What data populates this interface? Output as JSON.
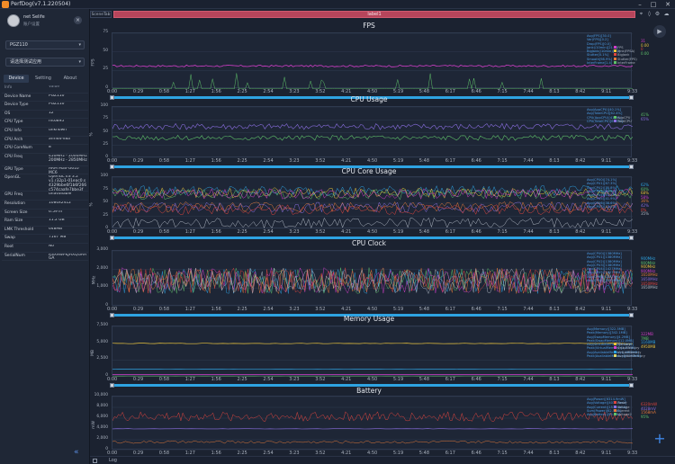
{
  "window": {
    "title": "PerfDog(v7.1.220504)",
    "min": "–",
    "max": "□",
    "close": "✕"
  },
  "user": {
    "name": "net Selife",
    "sub": "账户设置"
  },
  "device_select": "PGZ110",
  "app_select": "请选择测试应用",
  "tabs": [
    "Device",
    "Setting",
    "About"
  ],
  "info": {
    "header": {
      "k": "Info",
      "v": "Value"
    },
    "rows": [
      {
        "k": "Device Name",
        "v": "PGZ110"
      },
      {
        "k": "Device Type",
        "v": "PGZ110"
      },
      {
        "k": "OS",
        "v": "12"
      },
      {
        "k": "CPU Type",
        "v": "mt6895"
      },
      {
        "k": "CPU Info",
        "v": "unknown"
      },
      {
        "k": "CPU Arch",
        "v": "arm64-v8a"
      },
      {
        "k": "CPU CoreNum",
        "v": "8"
      },
      {
        "k": "CPU Freq",
        "v": "450MHz - 2000MHz 200MHz - 2850MHz"
      },
      {
        "k": "GPU Type",
        "v": "ARM Mali-G610 MC6"
      },
      {
        "k": "OpenGL",
        "v": "OpenGL ES 3.2 v1.r32p1-01eac0.s 4329bbe6f1b6f266 c574caafe7bbe3f"
      },
      {
        "k": "GPU Freq",
        "v": "unavailable"
      },
      {
        "k": "Resolution",
        "v": "1080x2412"
      },
      {
        "k": "Screen Size",
        "v": "6.59 in"
      },
      {
        "k": "Ram Size",
        "v": "11.2 GB"
      },
      {
        "k": "LMK Threshold",
        "v": "648MB"
      },
      {
        "k": "Swap",
        "v": "7167 MB"
      },
      {
        "k": "Root",
        "v": "No"
      },
      {
        "k": "SerialNum",
        "v": "RSX9WFKJHXQGAA GA"
      }
    ]
  },
  "scene_tab": "SceneTab",
  "label": "label1",
  "log_label": "Log",
  "time_ticks": [
    "0:00",
    "0:29",
    "0:58",
    "1:27",
    "1:56",
    "2:25",
    "2:54",
    "3:23",
    "3:52",
    "4:21",
    "4:50",
    "5:19",
    "5:48",
    "6:17",
    "6:46",
    "7:15",
    "7:44",
    "8:13",
    "8:42",
    "9:11",
    "9:33"
  ],
  "panels": [
    {
      "title": "FPS",
      "unit": "FPS",
      "yticks": [
        "75",
        "50",
        "25",
        "0"
      ],
      "stats": [
        "Avg(FPS)[30.0]",
        "Var(FPS)[0.2]",
        "Drop(FPS)[0.0]",
        "Jank(/10min)[21.3]",
        "BigJank(/10min)[2.7]",
        "Stutter[0.1%]",
        "Smooth[98.9%]",
        "InterFrame[1.4]"
      ],
      "legend": [
        {
          "name": "FPS",
          "color": "#d23ec8"
        },
        {
          "name": "Jank(FPSΔ)",
          "color": "#e8c23a"
        },
        {
          "name": "BigJank",
          "color": "#e0453f"
        },
        {
          "name": "Stutter(FPS)",
          "color": "#e47a3a"
        },
        {
          "name": "InterFrame",
          "color": "#5fc06a"
        }
      ],
      "rvals": [
        {
          "t": "31",
          "c": "#d23ec8"
        },
        {
          "t": "0.00",
          "c": "#e8c23a"
        },
        {
          "t": "0",
          "c": "#e0453f"
        },
        {
          "t": "0.00",
          "c": "#5fc06a"
        }
      ]
    },
    {
      "title": "CPU Usage",
      "unit": "%",
      "yticks": [
        "100",
        "75",
        "50",
        "25",
        "0"
      ],
      "stats": [
        "Avg(AppCPU)[40.1%]",
        "Avg(TotalCPU)[62.4%]",
        "CPU(AppCPU)[41.0%]",
        "CPU(TotalCPU)[63.3%]"
      ],
      "legend": [
        {
          "name": "AppCPU",
          "color": "#5fc06a"
        },
        {
          "name": "TotalCPU",
          "color": "#8a6ee0"
        }
      ],
      "rvals": [
        {
          "t": "41%",
          "c": "#5fc06a"
        },
        {
          "t": "65%",
          "c": "#8a6ee0"
        }
      ]
    },
    {
      "title": "CPU Core Usage",
      "unit": "%",
      "yticks": [
        "100",
        "75",
        "50",
        "25",
        "0"
      ],
      "stats": [
        "Avg(CPU0)[74.1%]",
        "Avg(CPU1)[67.3%]",
        "Avg(CPU2)[70.8%]",
        "Avg(CPU3)[68.4%]",
        "Avg(CPU4)[43.2%]",
        "Avg(CPU5)[41.9%]",
        "Avg(CPU6)[38.6%]",
        "Avg(CPU7)[12.0%]"
      ],
      "legend": [],
      "rvals": [
        {
          "t": "62%",
          "c": "#2ea3e2"
        },
        {
          "t": "60%",
          "c": "#5fc06a"
        },
        {
          "t": "68%",
          "c": "#e8c23a"
        },
        {
          "t": "58%",
          "c": "#d23ec8"
        },
        {
          "t": "36%",
          "c": "#e47a3a"
        },
        {
          "t": "42%",
          "c": "#8a6ee0"
        },
        {
          "t": "0%",
          "c": "#e0453f"
        },
        {
          "t": "35%",
          "c": "#b0b8c4"
        }
      ]
    },
    {
      "title": "CPU Clock",
      "unit": "MHz",
      "yticks": [
        "3,000",
        "2,000",
        "1,000",
        "0"
      ],
      "stats": [
        "Avg(CPU0)[1380MHz]",
        "Avg(CPU1)[1380MHz]",
        "Avg(CPU2)[1380MHz]",
        "Avg(CPU3)[1380MHz]",
        "Avg(CPU4)[1427MHz]",
        "Avg(CPU5)[1427MHz]",
        "Avg(CPU6)[1427MHz]",
        "Avg(CPU7)[1502MHz]"
      ],
      "legend": [],
      "rvals": [
        {
          "t": "900MHz",
          "c": "#2ea3e2"
        },
        {
          "t": "900MHz",
          "c": "#5fc06a"
        },
        {
          "t": "900MHz",
          "c": "#e8c23a"
        },
        {
          "t": "900MHz",
          "c": "#d23ec8"
        },
        {
          "t": "1650MHz",
          "c": "#e47a3a"
        },
        {
          "t": "1650MHz",
          "c": "#8a6ee0"
        },
        {
          "t": "1650MHz",
          "c": "#e0453f"
        },
        {
          "t": "1650MHz",
          "c": "#b0b8c4"
        }
      ]
    },
    {
      "title": "Memory Usage",
      "unit": "MB",
      "yticks": [
        "7,500",
        "5,000",
        "2,500",
        "0"
      ],
      "stats": [
        "Avg(Memory)[322.5MB]",
        "Peak(Memory)[342.1MB]",
        "Avg(SwapMemory)[4.2MB]",
        "Peak(SwapMemory)[12.0MB]",
        "Avg(VirtualMemory)[1.14GB]",
        "Peak(VirtualMemory)[1.17GB]",
        "Avg(AvailableMemory)[4966MB]",
        "Peak(AvailableMemory)[5190MB]"
      ],
      "legend": [
        {
          "name": "Memory",
          "color": "#e8c23a"
        },
        {
          "name": "SwapMemory",
          "color": "#d23ec8"
        },
        {
          "name": "VirtualMemory",
          "color": "#2ea3e2"
        },
        {
          "name": "AvailableMemory",
          "color": "#e0d96a"
        }
      ],
      "rvals": [
        {
          "t": "322MB",
          "c": "#d23ec8"
        },
        {
          "t": "7MB",
          "c": "#5fc06a"
        },
        {
          "t": "1160MB",
          "c": "#2ea3e2"
        },
        {
          "t": "4950MB",
          "c": "#e8c23a"
        }
      ]
    },
    {
      "title": "Battery",
      "unit": "mW",
      "yticks": [
        "10,000",
        "8,000",
        "6,000",
        "4,000",
        "2,000",
        "0"
      ],
      "stats": [
        "Avg(Power)[6314.9mW]",
        "Avg(Voltage)[4031.3mV]",
        "Avg(Current)[1570.0mA]",
        "Sum(Power)[62.5Wh]",
        "Avg(Battery)[95.6%]"
      ],
      "legend": [
        {
          "name": "Power",
          "color": "#e0453f"
        },
        {
          "name": "Voltage",
          "color": "#8a6ee0"
        },
        {
          "name": "Current",
          "color": "#e47a3a"
        },
        {
          "name": "Voltage2",
          "color": "#5fc06a"
        }
      ],
      "rvals": [
        {
          "t": "6320mW",
          "c": "#e0453f"
        },
        {
          "t": "4028mV",
          "c": "#8a6ee0"
        },
        {
          "t": "1568mA",
          "c": "#e47a3a"
        },
        {
          "t": "95%",
          "c": "#5fc06a"
        }
      ]
    }
  ]
}
